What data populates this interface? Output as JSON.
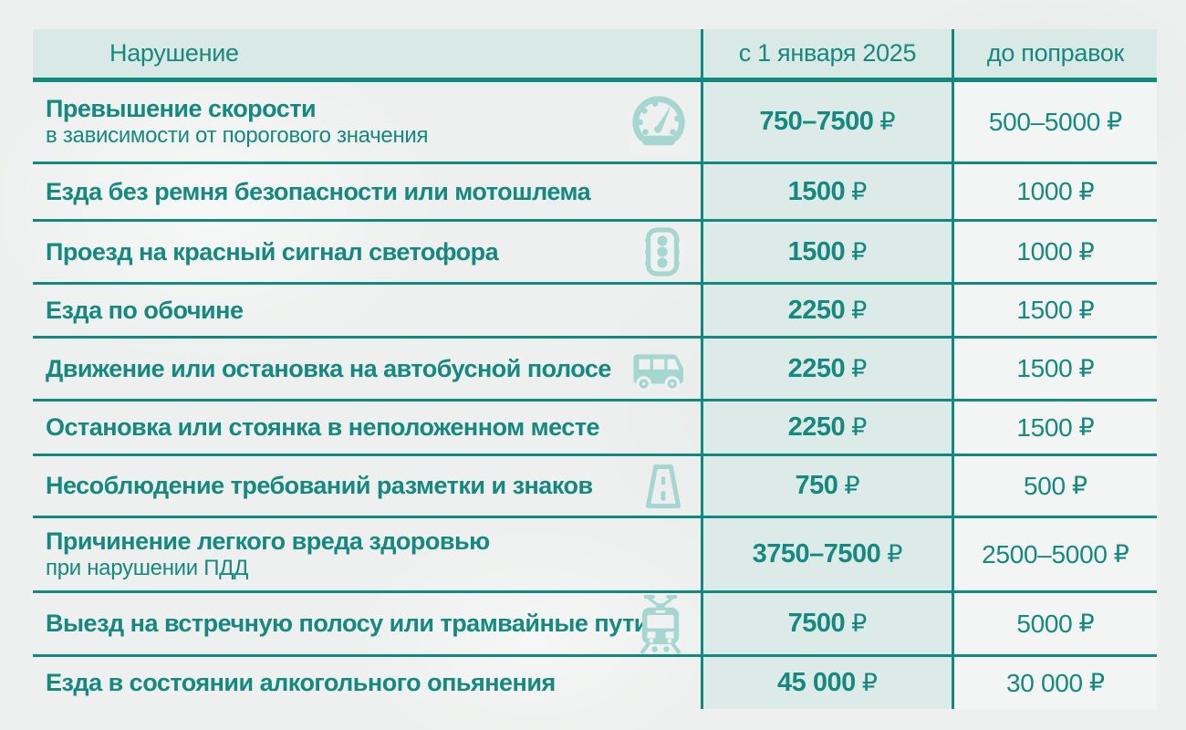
{
  "colors": {
    "accent_teal": "#15897f",
    "border_teal": "#12897f",
    "header_bg": "#d9e9e6",
    "new_col_bg": "#dcebe8",
    "old_col_bg": "#f3f5f4",
    "page_bg": "#edf0ee",
    "icon_teal": "#a6d6d0",
    "col1_bg": "#f0f2f1"
  },
  "currency_symbol": "₽",
  "header": {
    "violation": "Нарушение",
    "new_label": "с 1 января 2025",
    "old_label": "до поправок"
  },
  "rows": [
    {
      "title": "Превышение скорости",
      "subtitle": "в зависимости от порогового значения",
      "icon": "speedometer-icon",
      "new_value": "750–7500",
      "old_value": "500–5000"
    },
    {
      "title": "Езда без ремня безопасности или мотошлема",
      "subtitle": "",
      "icon": null,
      "new_value": "1500",
      "old_value": "1000"
    },
    {
      "title": "Проезд на красный сигнал светофора",
      "subtitle": "",
      "icon": "traffic-light-icon",
      "new_value": "1500",
      "old_value": "1000"
    },
    {
      "title": "Езда по обочине",
      "subtitle": "",
      "icon": null,
      "new_value": "2250",
      "old_value": "1500"
    },
    {
      "title": "Движение или остановка на автобусной полосе",
      "subtitle": "",
      "icon": "bus-icon",
      "new_value": "2250",
      "old_value": "1500"
    },
    {
      "title": "Остановка или стоянка в неположенном месте",
      "subtitle": "",
      "icon": null,
      "new_value": "2250",
      "old_value": "1500"
    },
    {
      "title": "Несоблюдение требований разметки и знаков",
      "subtitle": "",
      "icon": "road-icon",
      "new_value": "750",
      "old_value": "500"
    },
    {
      "title": "Причинение легкого вреда здоровью",
      "subtitle": "при нарушении ПДД",
      "icon": null,
      "new_value": "3750–7500",
      "old_value": "2500–5000"
    },
    {
      "title": "Выезд на встречную полосу или трамвайные пути",
      "subtitle": "",
      "icon": "tram-icon",
      "new_value": "7500",
      "old_value": "5000"
    },
    {
      "title": "Езда в состоянии алкогольного опьянения",
      "subtitle": "",
      "icon": null,
      "new_value": "45 000",
      "old_value": "30 000"
    }
  ],
  "chart_data": {
    "type": "table",
    "columns": [
      "Нарушение",
      "с 1 января 2025",
      "до поправок"
    ],
    "rows": [
      [
        "Превышение скорости в зависимости от порогового значения",
        "750–7500 ₽",
        "500–5000 ₽"
      ],
      [
        "Езда без ремня безопасности или мотошлема",
        "1500 ₽",
        "1000 ₽"
      ],
      [
        "Проезд на красный сигнал светофора",
        "1500 ₽",
        "1000 ₽"
      ],
      [
        "Езда по обочине",
        "2250 ₽",
        "1500 ₽"
      ],
      [
        "Движение или остановка на автобусной полосе",
        "2250 ₽",
        "1500 ₽"
      ],
      [
        "Остановка или стоянка в неположенном месте",
        "2250 ₽",
        "1500 ₽"
      ],
      [
        "Несоблюдение требований разметки и знаков",
        "750 ₽",
        "500 ₽"
      ],
      [
        "Причинение легкого вреда здоровью при нарушении ПДД",
        "3750–7500 ₽",
        "2500–5000 ₽"
      ],
      [
        "Выезд на встречную полосу или трамвайные пути",
        "7500 ₽",
        "5000 ₽"
      ],
      [
        "Езда в состоянии алкогольного опьянения",
        "45 000 ₽",
        "30 000 ₽"
      ]
    ]
  }
}
